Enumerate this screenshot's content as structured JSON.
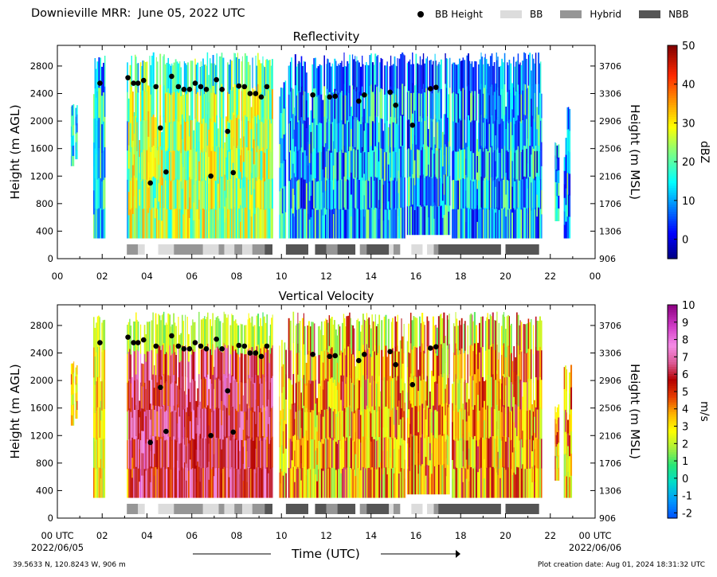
{
  "header": {
    "title": "Downieville MRR:  June 05, 2022 UTC",
    "legend": [
      {
        "label": "BB Height",
        "type": "dot",
        "color": "#000000"
      },
      {
        "label": "BB",
        "type": "swatch",
        "color": "#dcdcdc"
      },
      {
        "label": "Hybrid",
        "type": "swatch",
        "color": "#969696"
      },
      {
        "label": "NBB",
        "type": "swatch",
        "color": "#555555"
      }
    ]
  },
  "footer": {
    "location": "39.5633 N, 120.8243 W, 906 m",
    "created": "Plot creation date: Aug 01, 2024 18:31:32 UTC"
  },
  "chart_data": [
    {
      "type": "heatmap",
      "title": "Reflectivity",
      "ylabel": "Height (m AGL)",
      "y2label": "Height (m MSL)",
      "xlim": [
        0,
        24
      ],
      "ylim": [
        0,
        3100
      ],
      "yticks": [
        0,
        400,
        800,
        1200,
        1600,
        2000,
        2400,
        2800
      ],
      "y2ticks": [
        "906",
        "1306",
        "1706",
        "2106",
        "2506",
        "2906",
        "3306",
        "3706"
      ],
      "xticklabels": [
        "00",
        "02",
        "04",
        "06",
        "08",
        "10",
        "12",
        "14",
        "16",
        "18",
        "20",
        "22",
        "00"
      ],
      "colorbar": {
        "label": "dBZ",
        "min": -5,
        "max": 50,
        "ticks": [
          0,
          10,
          20,
          30,
          40,
          50
        ],
        "colormap": "jet"
      }
    },
    {
      "type": "heatmap",
      "title": "Vertical Velocity",
      "ylabel": "Height (m AGL)",
      "y2label": "Height (m MSL)",
      "xlabel": "Time (UTC)",
      "xlim": [
        0,
        24
      ],
      "ylim": [
        0,
        3100
      ],
      "yticks": [
        0,
        400,
        800,
        1200,
        1600,
        2000,
        2400,
        2800
      ],
      "y2ticks": [
        "906",
        "1306",
        "1706",
        "2106",
        "2506",
        "2906",
        "3306",
        "3706"
      ],
      "xticklabels": [
        "00 UTC",
        "02",
        "04",
        "06",
        "08",
        "10",
        "12",
        "14",
        "16",
        "18",
        "20",
        "22",
        "00 UTC"
      ],
      "xsublabels": {
        "start": "2022/06/05",
        "end": "2022/06/06"
      },
      "colorbar": {
        "label": "m/s",
        "min": -2.3,
        "max": 10,
        "ticks": [
          -2,
          -1,
          0,
          1,
          2,
          3,
          4,
          5,
          6,
          7,
          8,
          9,
          10
        ],
        "colormap": "velocity"
      }
    }
  ],
  "bb_height_points": [
    [
      1.9,
      2550
    ],
    [
      3.15,
      2630
    ],
    [
      3.4,
      2550
    ],
    [
      3.6,
      2550
    ],
    [
      3.85,
      2590
    ],
    [
      4.15,
      1100
    ],
    [
      4.4,
      2500
    ],
    [
      4.6,
      1900
    ],
    [
      4.85,
      1260
    ],
    [
      5.1,
      2650
    ],
    [
      5.4,
      2500
    ],
    [
      5.65,
      2460
    ],
    [
      5.9,
      2460
    ],
    [
      6.15,
      2550
    ],
    [
      6.4,
      2500
    ],
    [
      6.65,
      2460
    ],
    [
      6.85,
      1200
    ],
    [
      7.1,
      2600
    ],
    [
      7.35,
      2460
    ],
    [
      7.6,
      1850
    ],
    [
      7.85,
      1250
    ],
    [
      8.1,
      2510
    ],
    [
      8.35,
      2500
    ],
    [
      8.6,
      2400
    ],
    [
      8.85,
      2400
    ],
    [
      9.1,
      2350
    ],
    [
      9.35,
      2500
    ],
    [
      11.4,
      2380
    ],
    [
      12.15,
      2350
    ],
    [
      12.4,
      2360
    ],
    [
      13.45,
      2290
    ],
    [
      13.7,
      2380
    ],
    [
      14.85,
      2420
    ],
    [
      15.1,
      2230
    ],
    [
      15.85,
      1940
    ],
    [
      16.65,
      2470
    ],
    [
      16.9,
      2490
    ]
  ],
  "bb_class_bars": [
    [
      3.1,
      3.6,
      "Hybrid"
    ],
    [
      3.6,
      3.9,
      "BB"
    ],
    [
      4.5,
      5.2,
      "BB"
    ],
    [
      5.2,
      6.5,
      "Hybrid"
    ],
    [
      6.5,
      7.2,
      "BB"
    ],
    [
      7.2,
      7.45,
      "Hybrid"
    ],
    [
      7.45,
      7.9,
      "BB"
    ],
    [
      7.9,
      8.25,
      "Hybrid"
    ],
    [
      8.25,
      8.7,
      "BB"
    ],
    [
      8.7,
      9.25,
      "Hybrid"
    ],
    [
      9.25,
      9.6,
      "NBB"
    ],
    [
      10.2,
      11.2,
      "NBB"
    ],
    [
      11.5,
      12.0,
      "NBB"
    ],
    [
      12.0,
      12.5,
      "Hybrid"
    ],
    [
      12.5,
      13.3,
      "NBB"
    ],
    [
      13.5,
      13.8,
      "Hybrid"
    ],
    [
      13.8,
      14.8,
      "NBB"
    ],
    [
      14.8,
      15.0,
      "BB"
    ],
    [
      15.0,
      15.3,
      "Hybrid"
    ],
    [
      15.8,
      16.3,
      "BB"
    ],
    [
      16.5,
      16.8,
      "BB"
    ],
    [
      16.8,
      17.0,
      "Hybrid"
    ],
    [
      17.0,
      19.8,
      "NBB"
    ],
    [
      20.0,
      21.5,
      "NBB"
    ]
  ],
  "precip_segments": [
    [
      0.6,
      0.75,
      1350,
      2280
    ],
    [
      0.8,
      0.9,
      1450,
      2250
    ],
    [
      1.6,
      2.1,
      300,
      2950
    ],
    [
      3.1,
      9.6,
      300,
      3000
    ],
    [
      9.9,
      10.2,
      300,
      2600
    ],
    [
      10.3,
      15.5,
      300,
      3000
    ],
    [
      15.6,
      17.5,
      350,
      3000
    ],
    [
      17.6,
      19.6,
      300,
      3000
    ],
    [
      19.6,
      21.6,
      300,
      3000
    ],
    [
      22.2,
      22.4,
      550,
      1700
    ],
    [
      22.6,
      22.9,
      300,
      2250
    ]
  ],
  "units": {
    "x": "hours UTC",
    "y": "m AGL"
  }
}
